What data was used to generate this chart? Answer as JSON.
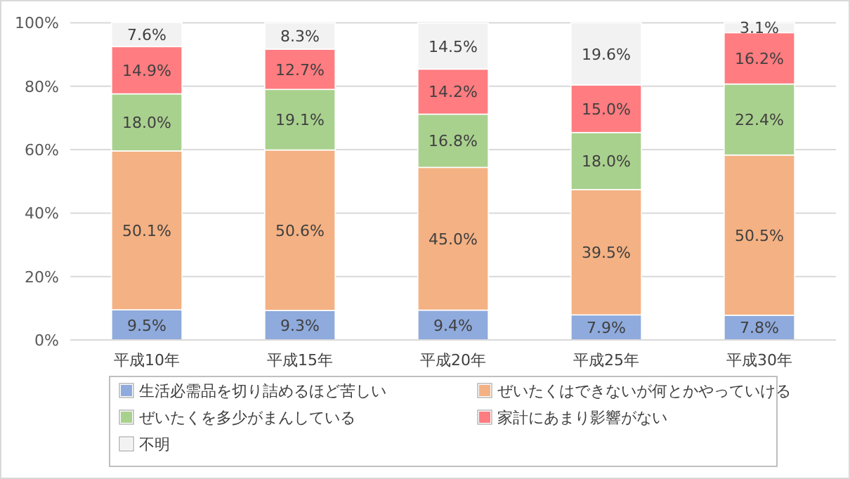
{
  "chart_data": {
    "type": "bar",
    "stacked": true,
    "categories": [
      "平成10年",
      "平成15年",
      "平成20年",
      "平成25年",
      "平成30年"
    ],
    "series": [
      {
        "name": "生活必需品を切り詰めるほど苦しい",
        "color": "#8faadc",
        "values": [
          9.5,
          9.3,
          9.4,
          7.9,
          7.8
        ],
        "value_labels": [
          "9.5%",
          "9.3%",
          "9.4%",
          "7.9%",
          "7.8%"
        ]
      },
      {
        "name": "ぜいたくはできないが何とかやっていける",
        "color": "#f4b183",
        "values": [
          50.1,
          50.6,
          45.0,
          39.5,
          50.5
        ],
        "value_labels": [
          "50.1%",
          "50.6%",
          "45.0%",
          "39.5%",
          "50.5%"
        ]
      },
      {
        "name": "ぜいたくを多少がまんしている",
        "color": "#a9d18e",
        "values": [
          18.0,
          19.1,
          16.8,
          18.0,
          22.4
        ],
        "value_labels": [
          "18.0%",
          "19.1%",
          "16.8%",
          "18.0%",
          "22.4%"
        ]
      },
      {
        "name": "家計にあまり影響がない",
        "color": "#ff7c80",
        "values": [
          14.9,
          12.7,
          14.2,
          15.0,
          16.2
        ],
        "value_labels": [
          "14.9%",
          "12.7%",
          "14.2%",
          "15.0%",
          "16.2%"
        ]
      },
      {
        "name": "不明",
        "color": "#f2f2f2",
        "values": [
          7.6,
          8.3,
          14.5,
          19.6,
          3.1
        ],
        "value_labels": [
          "7.6%",
          "8.3%",
          "14.5%",
          "19.6%",
          "3.1%"
        ]
      }
    ],
    "ylim": [
      0,
      100.1
    ],
    "yticks": [
      {
        "value": 0,
        "label": "0%"
      },
      {
        "value": 20,
        "label": "20%"
      },
      {
        "value": 40,
        "label": "40%"
      },
      {
        "value": 60,
        "label": "60%"
      },
      {
        "value": 80,
        "label": "80%"
      },
      {
        "value": 100,
        "label": "100%"
      }
    ],
    "grid": "y",
    "legend": "bottom"
  }
}
